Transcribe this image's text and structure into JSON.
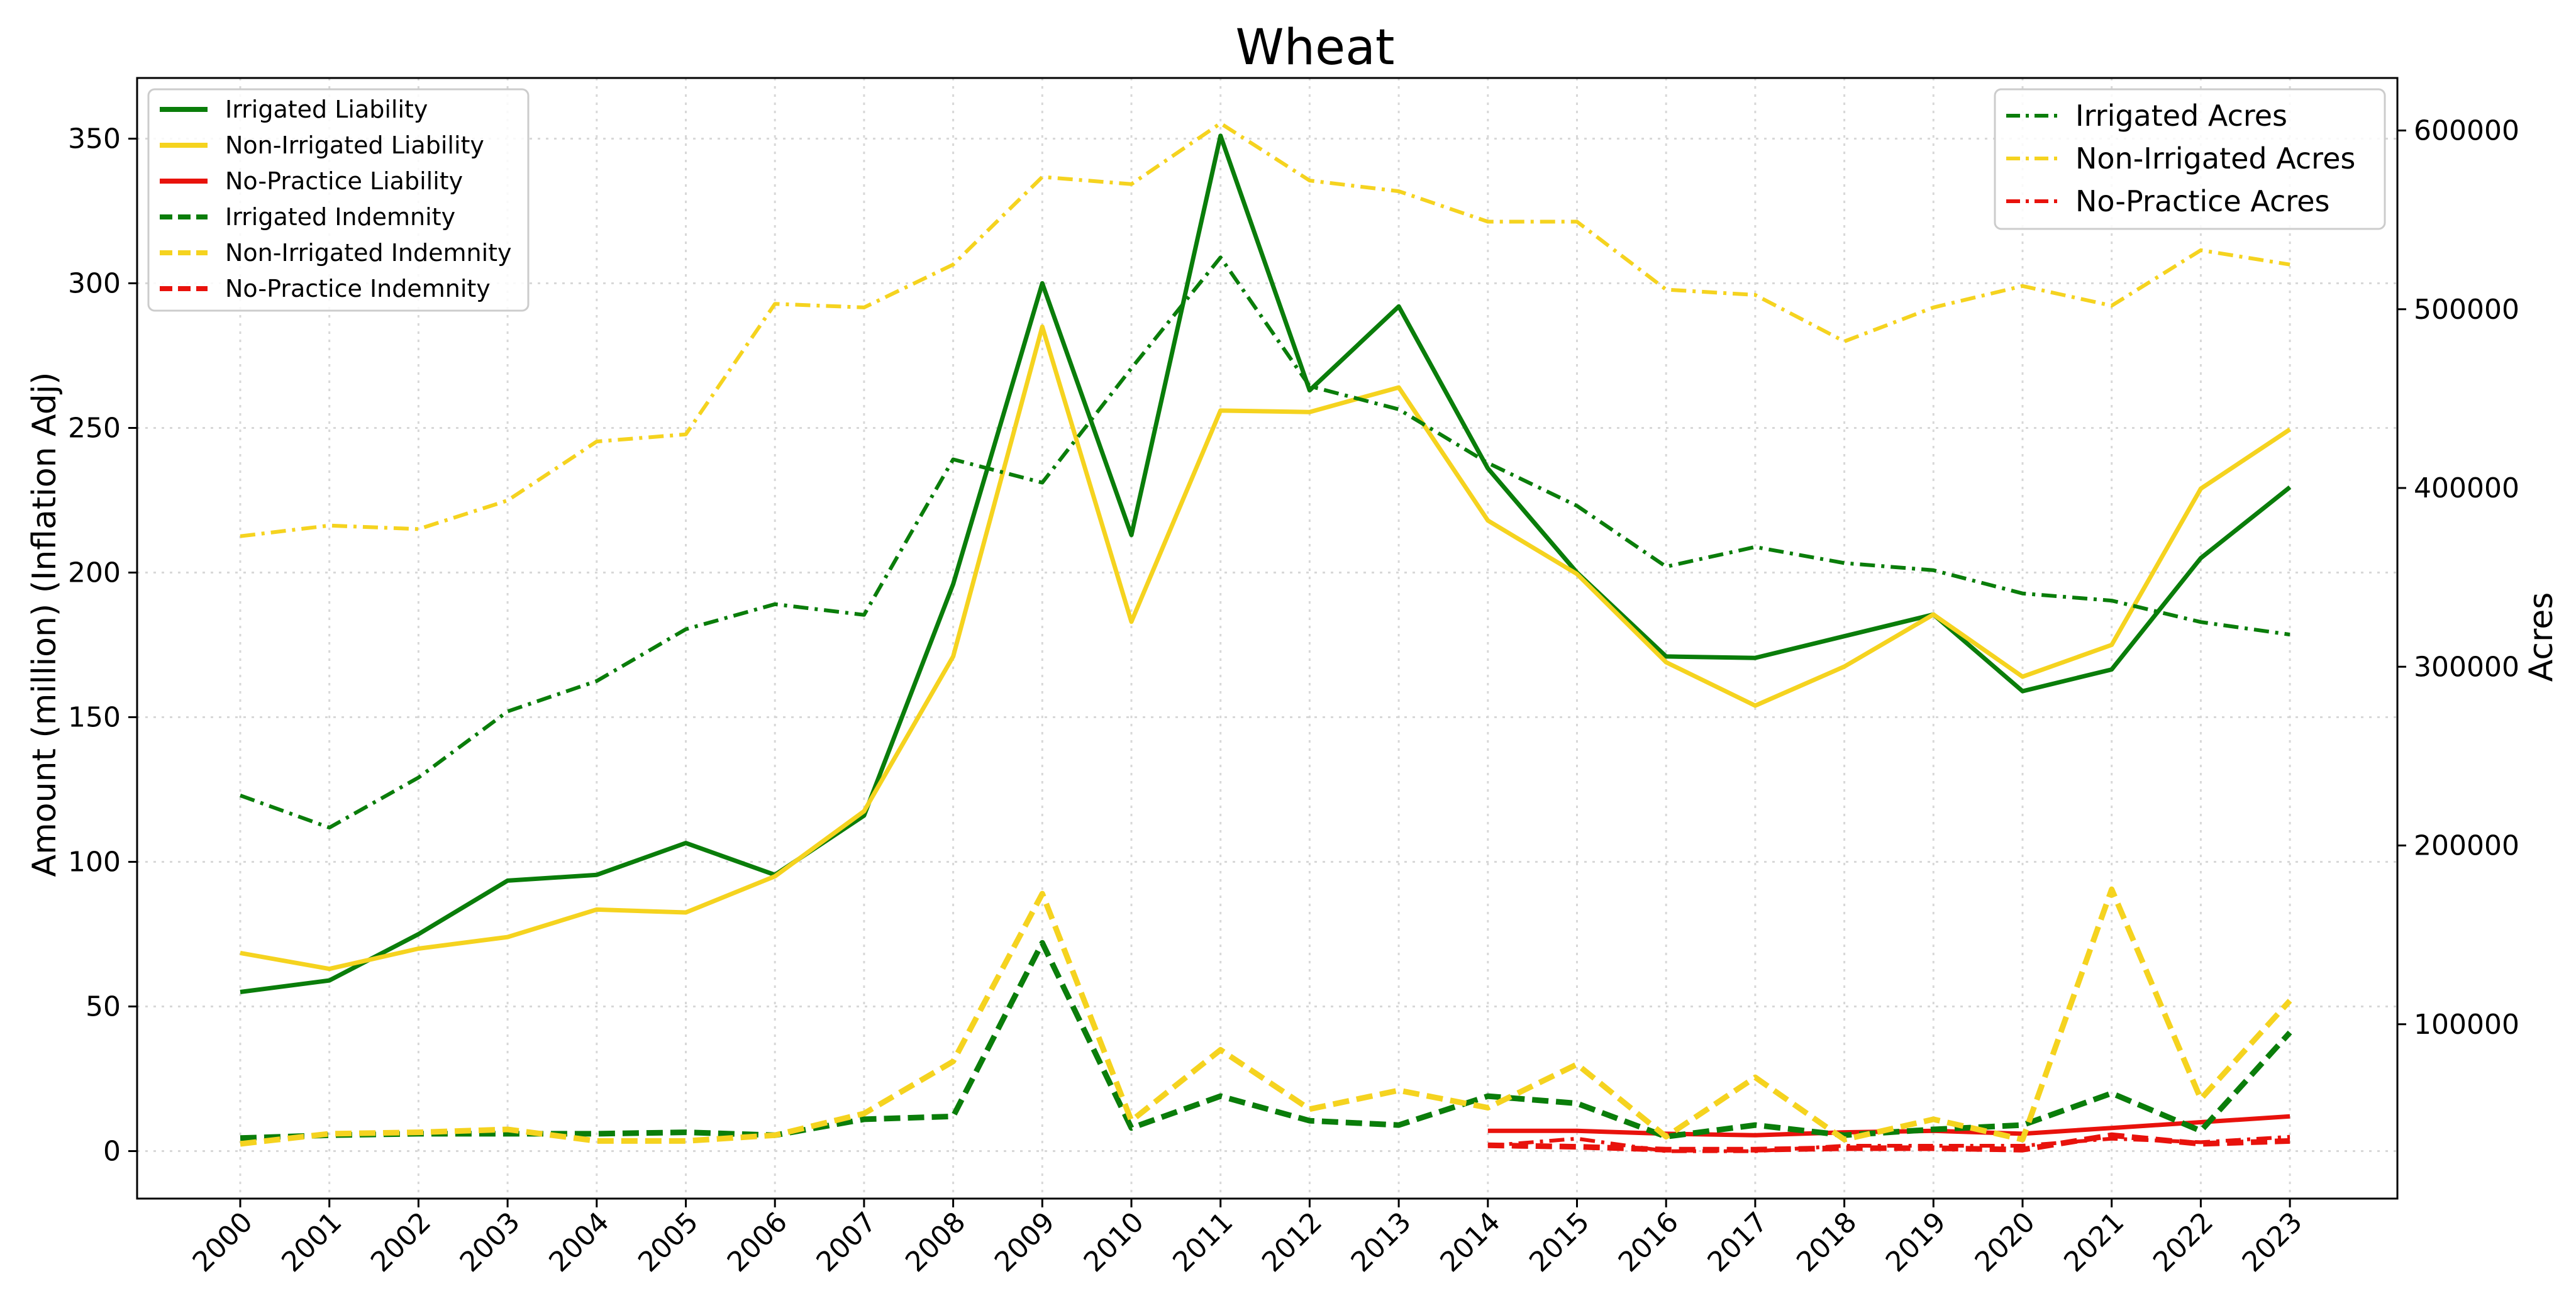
{
  "chart_data": {
    "type": "line",
    "title": "Wheat",
    "xlabel": "",
    "ylabel": "Amount (million) (Inflation Adj)",
    "ylabel_right": "Acres",
    "ylim": [
      -17,
      370
    ],
    "ylim_right": [
      0,
      630000
    ],
    "y_ticks": [
      0,
      50,
      100,
      150,
      200,
      250,
      300,
      350
    ],
    "y_ticks_right": [
      100000,
      200000,
      300000,
      400000,
      500000,
      600000
    ],
    "grid": true,
    "categories": [
      "2000",
      "2001",
      "2002",
      "2003",
      "2004",
      "2005",
      "2006",
      "2007",
      "2008",
      "2009",
      "2010",
      "2011",
      "2012",
      "2013",
      "2014",
      "2015",
      "2016",
      "2017",
      "2018",
      "2019",
      "2020",
      "2021",
      "2022",
      "2023"
    ],
    "legend_left": {
      "placement": "upper-left",
      "entries": [
        "Irrigated Liability",
        "Non-Irrigated Liability",
        "No-Practice Liability",
        "Irrigated Indemnity",
        "Non-Irrigated Indemnity",
        "No-Practice Indemnity"
      ]
    },
    "legend_right": {
      "placement": "upper-right",
      "entries": [
        "Irrigated Acres",
        "Non-Irrigated Acres",
        "No-Practice Acres"
      ]
    },
    "series": [
      {
        "name": "Irrigated Liability",
        "axis": "left",
        "style": "solid",
        "color": "#0a7d0a",
        "values": [
          55,
          59,
          75,
          93.5,
          95.5,
          106.5,
          95.5,
          116,
          196,
          300,
          213,
          351,
          263,
          292,
          236,
          200,
          171,
          170.5,
          178,
          185.5,
          159,
          166.5,
          205,
          229.5
        ]
      },
      {
        "name": "Non-Irrigated Liability",
        "axis": "left",
        "style": "solid",
        "color": "#f5d31f",
        "values": [
          68.5,
          63,
          70,
          74,
          83.5,
          82.5,
          95,
          117.5,
          171,
          285,
          183,
          256,
          255.5,
          264,
          218,
          199.5,
          169,
          154,
          167.5,
          185.5,
          164,
          175,
          229,
          249.5
        ]
      },
      {
        "name": "No-Practice Liability",
        "axis": "left",
        "style": "solid",
        "color": "#e8120c",
        "values": [
          null,
          null,
          null,
          null,
          null,
          null,
          null,
          null,
          null,
          null,
          null,
          null,
          null,
          null,
          7,
          7,
          6,
          5.5,
          6.5,
          7,
          6,
          8,
          10,
          12
        ]
      },
      {
        "name": "Irrigated Indemnity",
        "axis": "left",
        "style": "dashed",
        "color": "#0a7d0a",
        "values": [
          4.5,
          5.5,
          6,
          6,
          6,
          6.5,
          5.5,
          11,
          12,
          72,
          8,
          19,
          10.5,
          9,
          19,
          16.5,
          5,
          9,
          5.5,
          7.5,
          9,
          20,
          7,
          41
        ]
      },
      {
        "name": "Non-Irrigated Indemnity",
        "axis": "left",
        "style": "dashed",
        "color": "#f5d31f",
        "values": [
          2.5,
          6,
          6.5,
          7.5,
          3.5,
          3.5,
          5.5,
          13,
          31,
          89,
          10.5,
          35,
          14.5,
          21,
          15,
          30,
          5,
          25.5,
          4,
          11,
          4,
          90.5,
          18,
          52
        ]
      },
      {
        "name": "No-Practice Indemnity",
        "axis": "left",
        "style": "dashed",
        "color": "#e8120c",
        "values": [
          null,
          null,
          null,
          null,
          null,
          null,
          null,
          null,
          null,
          null,
          null,
          null,
          null,
          null,
          2,
          1.5,
          0.5,
          0.5,
          1,
          1,
          0.5,
          5.5,
          2.5,
          3.5
        ]
      },
      {
        "name": "Irrigated Acres",
        "axis": "right",
        "style": "dashdot",
        "color": "#0a7d0a",
        "values": [
          228000,
          210000,
          238000,
          275000,
          292000,
          321000,
          335000,
          329000,
          416000,
          403000,
          467000,
          529000,
          457000,
          444000,
          414000,
          390000,
          356000,
          367000,
          358000,
          354000,
          341000,
          337000,
          325000,
          318000
        ]
      },
      {
        "name": "Non-Irrigated Acres",
        "axis": "right",
        "style": "dashdot",
        "color": "#f5d31f",
        "values": [
          373000,
          379000,
          377000,
          393000,
          426000,
          430000,
          503000,
          501000,
          525000,
          574000,
          570000,
          604000,
          572000,
          566000,
          549000,
          549000,
          511000,
          508000,
          482000,
          501000,
          513000,
          502000,
          533000,
          525000
        ]
      },
      {
        "name": "No-Practice Acres",
        "axis": "right",
        "style": "dashdot",
        "color": "#e8120c",
        "values": [
          null,
          null,
          null,
          null,
          null,
          null,
          null,
          null,
          null,
          null,
          null,
          null,
          null,
          null,
          32000,
          36000,
          29000,
          29000,
          32000,
          32000,
          32000,
          36000,
          34000,
          37000
        ]
      }
    ]
  }
}
